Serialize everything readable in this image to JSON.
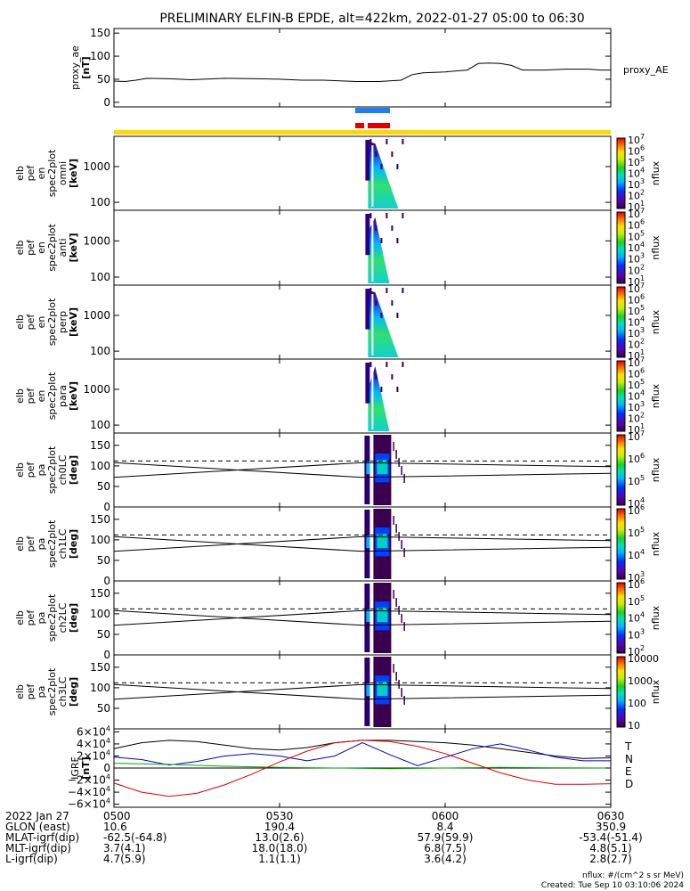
{
  "title": "PRELIMINARY ELFIN-B EPDE, alt=422km, 2022-01-27 05:00 to 06:30",
  "x_ticks": [
    {
      "label": "0500",
      "t": 0
    },
    {
      "label": "0530",
      "t": 30
    },
    {
      "label": "0600",
      "t": 60
    },
    {
      "label": "0630",
      "t": 90
    }
  ],
  "chart_data": [
    {
      "type": "line",
      "id": "proxy_ae",
      "ylabel_lines": [
        "proxy_ae",
        "[nT]"
      ],
      "ylim": [
        -10,
        160
      ],
      "yticks": [
        {
          "v": 0,
          "l": "0"
        },
        {
          "v": 50,
          "l": "50"
        },
        {
          "v": 100,
          "l": "100"
        },
        {
          "v": 150,
          "l": "150"
        }
      ],
      "series": [
        {
          "name": "proxy_AE",
          "x": [
            0,
            2,
            4,
            6,
            10,
            14,
            20,
            26,
            30,
            34,
            38,
            42,
            44,
            46,
            48,
            52,
            54,
            56,
            60,
            62,
            64,
            66,
            68,
            70,
            72,
            74,
            76,
            78,
            82,
            86,
            88,
            90
          ],
          "values": [
            46,
            45,
            48,
            52,
            51,
            49,
            52,
            51,
            50,
            48,
            48,
            46,
            45,
            45,
            45,
            48,
            60,
            64,
            66,
            68,
            70,
            84,
            85,
            84,
            80,
            70,
            70,
            70,
            72,
            72,
            70,
            70
          ]
        }
      ]
    },
    {
      "type": "heatmap",
      "id": "omni",
      "ylabel_lines": [
        "elb",
        "pef",
        "en",
        "spec2plot",
        "omni",
        "[keV]"
      ],
      "yscale": "log",
      "ylim": [
        60,
        7000
      ],
      "yticks": [
        {
          "v": 100,
          "l": "100"
        },
        {
          "v": 1000,
          "l": "1000"
        }
      ],
      "cbar_label": "nflux",
      "cbar_ticks": [
        "10",
        "10",
        "10",
        "10",
        "10",
        "10",
        "10"
      ],
      "cbar_exps": [
        "1",
        "2",
        "3",
        "4",
        "5",
        "6",
        "7"
      ]
    },
    {
      "type": "heatmap",
      "id": "anti",
      "ylabel_lines": [
        "elb",
        "pef",
        "en",
        "spec2plot",
        "anti",
        "[keV]"
      ],
      "yscale": "log",
      "ylim": [
        60,
        7000
      ],
      "yticks": [
        {
          "v": 100,
          "l": "100"
        },
        {
          "v": 1000,
          "l": "1000"
        }
      ],
      "cbar_label": "nflux",
      "cbar_ticks": [
        "10",
        "10",
        "10",
        "10",
        "10",
        "10",
        "10"
      ],
      "cbar_exps": [
        "1",
        "2",
        "3",
        "4",
        "5",
        "6",
        "7"
      ]
    },
    {
      "type": "heatmap",
      "id": "perp",
      "ylabel_lines": [
        "elb",
        "pef",
        "en",
        "spec2plot",
        "perp",
        "[keV]"
      ],
      "yscale": "log",
      "ylim": [
        60,
        7000
      ],
      "yticks": [
        {
          "v": 100,
          "l": "100"
        },
        {
          "v": 1000,
          "l": "1000"
        }
      ],
      "cbar_label": "nflux",
      "cbar_ticks": [
        "10",
        "10",
        "10",
        "10",
        "10",
        "10",
        "10"
      ],
      "cbar_exps": [
        "1",
        "2",
        "3",
        "4",
        "5",
        "6",
        "7"
      ]
    },
    {
      "type": "heatmap",
      "id": "para",
      "ylabel_lines": [
        "elb",
        "pef",
        "en",
        "spec2plot",
        "para",
        "[keV]"
      ],
      "yscale": "log",
      "ylim": [
        60,
        7000
      ],
      "yticks": [
        {
          "v": 100,
          "l": "100"
        },
        {
          "v": 1000,
          "l": "1000"
        }
      ],
      "cbar_label": "nflux",
      "cbar_ticks": [
        "10",
        "10",
        "10",
        "10",
        "10",
        "10",
        "10"
      ],
      "cbar_exps": [
        "1",
        "2",
        "3",
        "4",
        "5",
        "6",
        "7"
      ]
    },
    {
      "type": "heatmap",
      "id": "ch0LC",
      "ylabel_lines": [
        "elb",
        "pef",
        "pa",
        "spec2plot",
        "ch0LC",
        "[deg]"
      ],
      "ylim": [
        0,
        180
      ],
      "yticks": [
        {
          "v": 0,
          "l": "0"
        },
        {
          "v": 50,
          "l": "50"
        },
        {
          "v": 100,
          "l": "100"
        },
        {
          "v": 150,
          "l": "150"
        }
      ],
      "cbar_label": "nflux",
      "cbar_ticks": [
        "10",
        "10",
        "10",
        "10"
      ],
      "cbar_exps": [
        "4",
        "5",
        "6",
        "7"
      ]
    },
    {
      "type": "heatmap",
      "id": "ch1LC",
      "ylabel_lines": [
        "elb",
        "pef",
        "pa",
        "spec2plot",
        "ch1LC",
        "[deg]"
      ],
      "ylim": [
        0,
        180
      ],
      "yticks": [
        {
          "v": 0,
          "l": "0"
        },
        {
          "v": 50,
          "l": "50"
        },
        {
          "v": 100,
          "l": "100"
        },
        {
          "v": 150,
          "l": "150"
        }
      ],
      "cbar_label": "nflux",
      "cbar_ticks": [
        "10",
        "10",
        "10",
        "10"
      ],
      "cbar_exps": [
        "3",
        "4",
        "5",
        "6"
      ]
    },
    {
      "type": "heatmap",
      "id": "ch2LC",
      "ylabel_lines": [
        "elb",
        "pef",
        "pa",
        "spec2plot",
        "ch2LC",
        "[deg]"
      ],
      "ylim": [
        0,
        180
      ],
      "yticks": [
        {
          "v": 0,
          "l": "0"
        },
        {
          "v": 50,
          "l": "50"
        },
        {
          "v": 100,
          "l": "100"
        },
        {
          "v": 150,
          "l": "150"
        }
      ],
      "cbar_label": "nflux",
      "cbar_ticks": [
        "10",
        "10",
        "10",
        "10",
        "10"
      ],
      "cbar_exps": [
        "2",
        "3",
        "4",
        "5",
        "6"
      ]
    },
    {
      "type": "heatmap",
      "id": "ch3LC",
      "ylabel_lines": [
        "elb",
        "pef",
        "pa",
        "spec2plot",
        "ch3LC",
        "[deg]"
      ],
      "ylim": [
        0,
        180
      ],
      "yticks": [
        {
          "v": 50,
          "l": "50"
        },
        {
          "v": 100,
          "l": "100"
        },
        {
          "v": 150,
          "l": "150"
        }
      ],
      "cbar_label": "nflux",
      "cbar_ticks": [
        "10000",
        "1000",
        "100",
        "10"
      ],
      "cbar_exps": [
        "",
        "",
        "",
        ""
      ]
    },
    {
      "type": "line",
      "id": "igrf",
      "ylabel_lines": [
        "IGRF",
        "[nT]"
      ],
      "ylim": [
        -65000,
        65000
      ],
      "yticks": [
        {
          "v": 60000,
          "l": "6×10",
          "e": "4"
        },
        {
          "v": 40000,
          "l": "4×10",
          "e": "4"
        },
        {
          "v": 20000,
          "l": "2×10",
          "e": "4"
        },
        {
          "v": 0,
          "l": "0",
          "e": ""
        },
        {
          "v": -20000,
          "l": "−2×10",
          "e": "4"
        },
        {
          "v": -40000,
          "l": "−4×10",
          "e": "4"
        },
        {
          "v": -60000,
          "l": "−6×10",
          "e": "4"
        }
      ],
      "series": [
        {
          "name": "T",
          "color": "#000000",
          "x": [
            0,
            5,
            10,
            15,
            20,
            25,
            30,
            35,
            40,
            45,
            50,
            55,
            60,
            65,
            70,
            75,
            80,
            85,
            90
          ],
          "values": [
            32000,
            42000,
            46000,
            44000,
            38000,
            32000,
            30000,
            34000,
            42000,
            46000,
            46000,
            44000,
            42000,
            38000,
            32000,
            26000,
            20000,
            16000,
            17000
          ]
        },
        {
          "name": "N",
          "color": "#0000cc",
          "x": [
            0,
            5,
            10,
            15,
            20,
            25,
            30,
            35,
            40,
            45,
            50,
            55,
            60,
            65,
            70,
            75,
            80,
            85,
            90
          ],
          "values": [
            18000,
            14000,
            5000,
            11000,
            20000,
            24000,
            20000,
            12000,
            20000,
            42000,
            22000,
            4000,
            18000,
            32000,
            40000,
            30000,
            18000,
            12000,
            12000
          ]
        },
        {
          "name": "E",
          "color": "#00aa00",
          "x": [
            0,
            10,
            20,
            30,
            40,
            50,
            60,
            70,
            80,
            90
          ],
          "values": [
            8000,
            6000,
            3000,
            1000,
            0,
            -1000,
            0,
            1000,
            500,
            0
          ]
        },
        {
          "name": "D",
          "color": "#dd0000",
          "x": [
            0,
            5,
            10,
            15,
            20,
            25,
            30,
            35,
            40,
            45,
            50,
            55,
            60,
            65,
            70,
            75,
            80,
            85,
            90
          ],
          "values": [
            -25000,
            -40000,
            -47000,
            -42000,
            -28000,
            -10000,
            10000,
            28000,
            42000,
            46000,
            44000,
            36000,
            24000,
            8000,
            -8000,
            -20000,
            -27000,
            -27000,
            -26000
          ]
        }
      ],
      "legend": [
        "T",
        "N",
        "E",
        "D"
      ]
    }
  ],
  "side_label": "proxy_AE",
  "ephemeris": {
    "rows": [
      {
        "label": "2022 Jan 27",
        "values": [
          "0500",
          "0530",
          "0600",
          "0630"
        ]
      },
      {
        "label": "GLON (east)",
        "values": [
          "10.6",
          "190.4",
          "8.4",
          "350.9"
        ]
      },
      {
        "label": "MLAT-igrf(dip)",
        "values": [
          "-62.5(-64.8)",
          "13.0(2.6)",
          "57.9(59.9)",
          "-53.4(-51.4)"
        ]
      },
      {
        "label": "MLT-igrf(dip)",
        "values": [
          "3.7(4.1)",
          "18.0(18.0)",
          "6.8(7.5)",
          "4.8(5.1)"
        ]
      },
      {
        "label": "L-igrf(dip)",
        "values": [
          "4.7(5.9)",
          "1.1(1.1)",
          "3.6(4.2)",
          "2.8(2.7)"
        ]
      }
    ]
  },
  "footer": {
    "units": "nflux: #/(cm^2 s sr MeV)",
    "created": "Created: Tue Sep 10 03:10:06 2024"
  },
  "colors": {
    "blue_bar": "#1e7ef0",
    "red_bar": "#e00000",
    "yellow_bar": "#ffd800"
  }
}
